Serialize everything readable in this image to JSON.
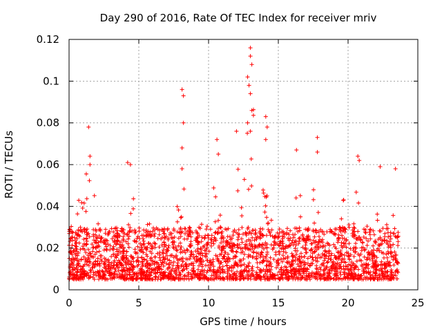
{
  "chart_data": {
    "type": "scatter",
    "title": "Day 290 of 2016, Rate Of TEC Index for receiver mriv",
    "xlabel": "GPS time / hours",
    "ylabel": "ROTI / TECUs",
    "xlim": [
      0,
      25
    ],
    "ylim": [
      0,
      0.12
    ],
    "xticks": [
      0,
      5,
      10,
      15,
      20,
      25
    ],
    "xtick_labels": [
      "0",
      "5",
      "10",
      "15",
      "20",
      "25"
    ],
    "yticks": [
      0,
      0.02,
      0.04,
      0.06,
      0.08,
      0.1,
      0.12
    ],
    "ytick_labels": [
      "0",
      "0.02",
      "0.04",
      "0.06",
      "0.08",
      "0.1",
      "0.12"
    ],
    "grid": true,
    "marker": "+",
    "color": "#ff0000",
    "series": [
      {
        "name": "ROTI",
        "x_range": [
          0,
          23.6
        ],
        "baseline_band": [
          0.005,
          0.03
        ],
        "notable_points": [
          {
            "x": 1.4,
            "y": 0.078
          },
          {
            "x": 1.5,
            "y": 0.064
          },
          {
            "x": 1.5,
            "y": 0.06
          },
          {
            "x": 4.2,
            "y": 0.061
          },
          {
            "x": 4.4,
            "y": 0.06
          },
          {
            "x": 8.1,
            "y": 0.096
          },
          {
            "x": 8.2,
            "y": 0.093
          },
          {
            "x": 8.2,
            "y": 0.08
          },
          {
            "x": 8.1,
            "y": 0.068
          },
          {
            "x": 8.1,
            "y": 0.058
          },
          {
            "x": 10.6,
            "y": 0.072
          },
          {
            "x": 10.7,
            "y": 0.065
          },
          {
            "x": 12.0,
            "y": 0.076
          },
          {
            "x": 12.8,
            "y": 0.102
          },
          {
            "x": 12.9,
            "y": 0.098
          },
          {
            "x": 13.0,
            "y": 0.116
          },
          {
            "x": 13.0,
            "y": 0.112
          },
          {
            "x": 13.1,
            "y": 0.108
          },
          {
            "x": 13.0,
            "y": 0.094
          },
          {
            "x": 13.1,
            "y": 0.086
          },
          {
            "x": 12.8,
            "y": 0.08
          },
          {
            "x": 13.0,
            "y": 0.076
          },
          {
            "x": 14.1,
            "y": 0.083
          },
          {
            "x": 14.2,
            "y": 0.078
          },
          {
            "x": 14.1,
            "y": 0.072
          },
          {
            "x": 16.3,
            "y": 0.067
          },
          {
            "x": 17.8,
            "y": 0.073
          },
          {
            "x": 17.8,
            "y": 0.066
          },
          {
            "x": 20.7,
            "y": 0.064
          },
          {
            "x": 20.8,
            "y": 0.062
          },
          {
            "x": 22.3,
            "y": 0.059
          },
          {
            "x": 23.4,
            "y": 0.058
          }
        ]
      }
    ]
  }
}
